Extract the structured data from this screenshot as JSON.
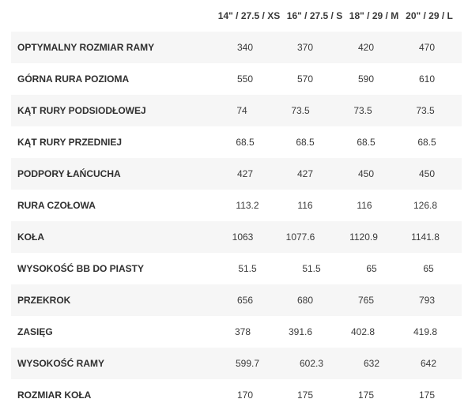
{
  "table": {
    "columns": [
      "14\" / 27.5 / XS",
      "16\" / 27.5 / S",
      "18\" / 29 / M",
      "20\" / 29 / L"
    ],
    "rows": [
      {
        "label": "OPTYMALNY ROZMIAR RAMY",
        "values": [
          "340",
          "370",
          "420",
          "470"
        ]
      },
      {
        "label": "GÓRNA RURA POZIOMA",
        "values": [
          "550",
          "570",
          "590",
          "610"
        ]
      },
      {
        "label": "KĄT RURY PODSIODŁOWEJ",
        "values": [
          "74",
          "73.5",
          "73.5",
          "73.5"
        ]
      },
      {
        "label": "KĄT RURY PRZEDNIEJ",
        "values": [
          "68.5",
          "68.5",
          "68.5",
          "68.5"
        ]
      },
      {
        "label": "PODPORY ŁAŃCUCHA",
        "values": [
          "427",
          "427",
          "450",
          "450"
        ]
      },
      {
        "label": "RURA CZOŁOWA",
        "values": [
          "113.2",
          "116",
          "116",
          "126.8"
        ]
      },
      {
        "label": "KOŁA",
        "values": [
          "1063",
          "1077.6",
          "1120.9",
          "1141.8"
        ]
      },
      {
        "label": "WYSOKOŚĆ BB DO PIASTY",
        "values": [
          "51.5",
          "51.5",
          "65",
          "65"
        ]
      },
      {
        "label": "PRZEKROK",
        "values": [
          "656",
          "680",
          "765",
          "793"
        ]
      },
      {
        "label": "ZASIĘG",
        "values": [
          "378",
          "391.6",
          "402.8",
          "419.8"
        ]
      },
      {
        "label": "WYSOKOŚĆ RAMY",
        "values": [
          "599.7",
          "602.3",
          "632",
          "642"
        ]
      },
      {
        "label": "ROZMIAR KOŁA",
        "values": [
          "170",
          "175",
          "175",
          "175"
        ]
      }
    ]
  }
}
